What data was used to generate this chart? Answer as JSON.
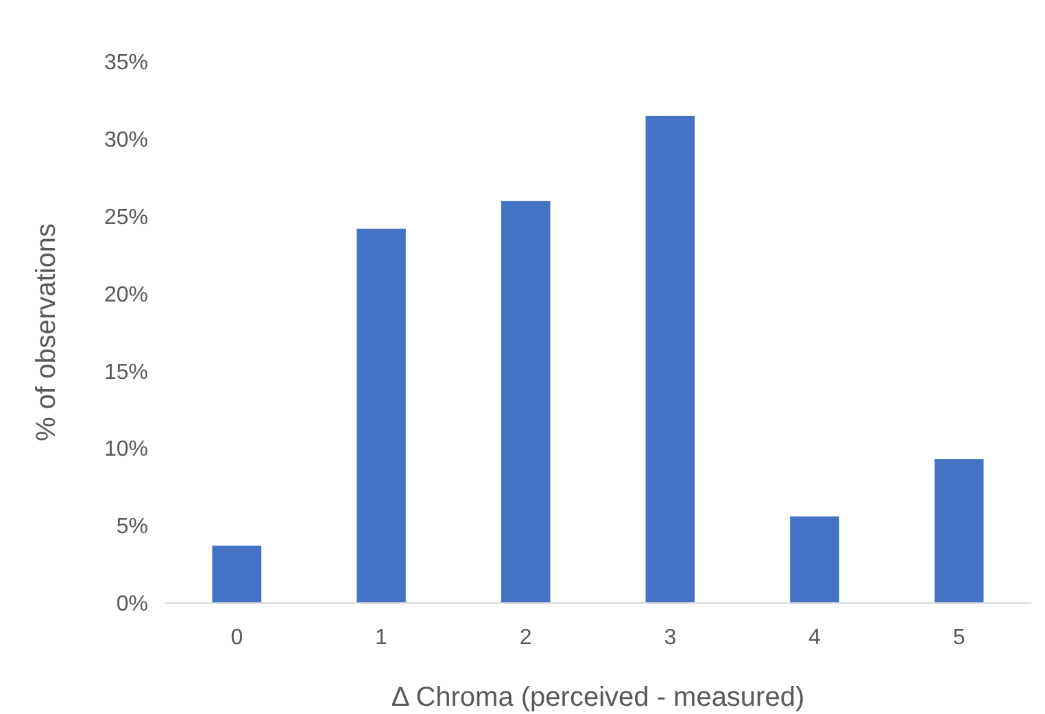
{
  "chart_data": {
    "type": "bar",
    "xlabel": "Δ Chroma (perceived - measured)",
    "ylabel": "% of observations",
    "categories": [
      "0",
      "1",
      "2",
      "3",
      "4",
      "5"
    ],
    "series": [
      {
        "color": "#4472c4",
        "values": [
          3.7,
          24.2,
          26.0,
          31.5,
          5.6,
          9.3
        ]
      }
    ],
    "ylim": [
      0,
      35
    ],
    "yticks": [
      {
        "value": 0,
        "label": "0%"
      },
      {
        "value": 5,
        "label": "5%"
      },
      {
        "value": 10,
        "label": "10%"
      },
      {
        "value": 15,
        "label": "15%"
      },
      {
        "value": 20,
        "label": "20%"
      },
      {
        "value": 25,
        "label": "25%"
      },
      {
        "value": 30,
        "label": "30%"
      },
      {
        "value": 35,
        "label": "35%"
      }
    ]
  }
}
